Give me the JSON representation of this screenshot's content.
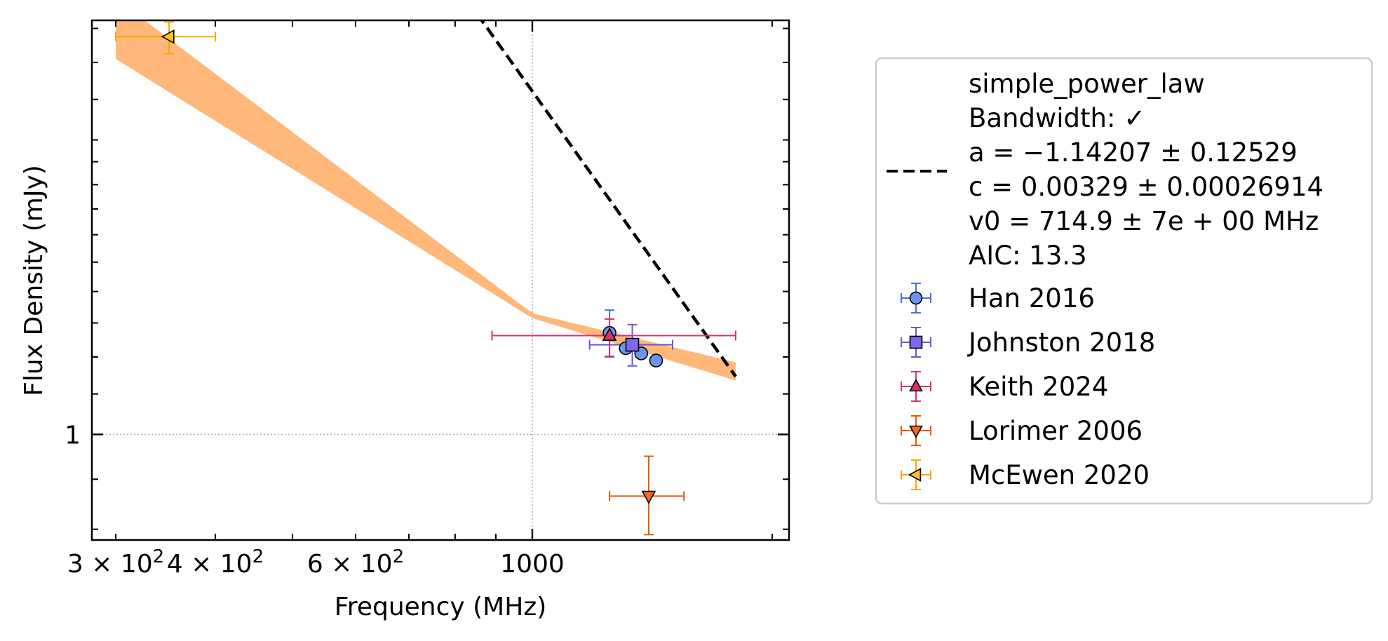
{
  "chart_data": {
    "type": "scatter",
    "xlabel": "Frequency (MHz)",
    "ylabel": "Flux Density (mJy)",
    "xscale": "log",
    "yscale": "log",
    "xlim": [
      280,
      2100
    ],
    "ylim": [
      0.78,
      2.65
    ],
    "x_ticks": [
      {
        "value": 300,
        "label_base": "3 × 10",
        "label_exp": "2"
      },
      {
        "value": 400,
        "label_base": "4 × 10",
        "label_exp": "2"
      },
      {
        "value": 600,
        "label_base": "6 × 10",
        "label_exp": "2"
      },
      {
        "value": 1000,
        "label_base": "1000",
        "label_exp": ""
      }
    ],
    "y_ticks": [
      {
        "value": 1,
        "label": "1"
      }
    ],
    "grid": "dotted at 1000 MHz and 1 mJy",
    "legend_placement": "outside right",
    "fit": {
      "model_lines": [
        "simple_power_law",
        "Bandwidth: ✓",
        "a = −1.14207 ± 0.12529",
        "c = 0.00329 ± 0.00026914",
        "v0 = 714.9 ± 7e + 00 MHz",
        "AIC: 13.3"
      ],
      "a": -1.14207,
      "c": 0.00329,
      "v0": 714.9,
      "x_range": [
        300,
        1800
      ],
      "band_color": "#ffb87a",
      "line_color": "#000000",
      "band": [
        {
          "x": 300,
          "lo": 2.42,
          "hi": 2.79
        },
        {
          "x": 1000,
          "lo": 1.315,
          "hi": 1.33
        },
        {
          "x": 1800,
          "lo": 1.135,
          "hi": 1.185
        }
      ]
    },
    "series": [
      {
        "name": "Han 2016",
        "marker": "circle",
        "color": "#6d93ec",
        "edge": "#4a6fd6",
        "points": [
          {
            "x": 1250,
            "y": 1.27,
            "yerr": [
              0.07,
              0.07
            ]
          },
          {
            "x": 1310,
            "y": 1.225,
            "yerr": [
              0.0,
              0.0
            ]
          },
          {
            "x": 1370,
            "y": 1.21,
            "yerr": [
              0.0,
              0.0
            ]
          },
          {
            "x": 1430,
            "y": 1.19,
            "yerr": [
              0.0,
              0.0
            ]
          }
        ]
      },
      {
        "name": "Johnston 2018",
        "marker": "square",
        "color": "#7b68ee",
        "edge": "#6a5acd",
        "points": [
          {
            "x": 1335,
            "y": 1.235,
            "xerr": [
              155,
              165
            ],
            "yerr": [
              0.06,
              0.06
            ]
          }
        ]
      },
      {
        "name": "Keith 2024",
        "marker": "triangle-up",
        "color": "#d6336c",
        "edge": "#d6337b",
        "points": [
          {
            "x": 1250,
            "y": 1.262,
            "xerr": [
              360,
              550
            ],
            "yerr": [
              0.06,
              0.05
            ]
          }
        ]
      },
      {
        "name": "Lorimer 2006",
        "marker": "triangle-down",
        "color": "#f26c1d",
        "edge": "#e8590c",
        "points": [
          {
            "x": 1400,
            "y": 0.865,
            "xerr": [
              150,
              150
            ],
            "yerr": [
              0.075,
              0.085
            ]
          }
        ]
      },
      {
        "name": "McEwen 2020",
        "marker": "triangle-left",
        "color": "#fcc419",
        "edge": "#f5a800",
        "points": [
          {
            "x": 350,
            "y": 2.55,
            "xerr": [
              50,
              50
            ],
            "yerr": [
              0.1,
              0.09
            ]
          }
        ]
      }
    ]
  }
}
